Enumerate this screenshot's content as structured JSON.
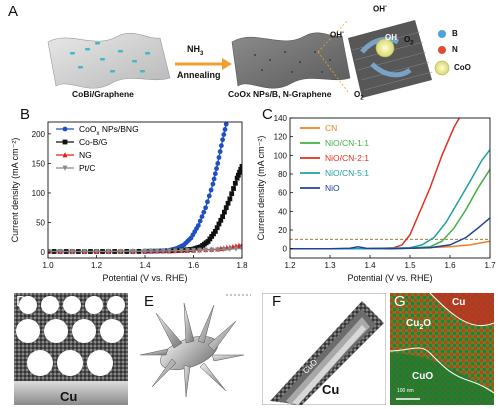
{
  "panelA": {
    "label": "A",
    "caption_left": "CoBi/Graphene",
    "arrow_top": "NH",
    "arrow_top_sub": "3",
    "arrow_bottom": "Annealing",
    "caption_mid": "CoOx NPs/B, N-Graphene",
    "oh1": "OH",
    "oh2": "OH",
    "oh3": "OH",
    "o2a": "O",
    "o2b": "O",
    "sub2": "2",
    "minus": "-",
    "legend": [
      {
        "name": "B",
        "color": "#4aa3df"
      },
      {
        "name": "N",
        "color": "#e24a33"
      },
      {
        "name": "CoO",
        "color": "#f0ef9a"
      }
    ]
  },
  "panelB": {
    "label": "B",
    "xlabel": "Potential (V vs. RHE)",
    "ylabel": "Current density (mA cm⁻²)",
    "xticks": [
      "1.0",
      "1.2",
      "1.4",
      "1.6",
      "1.8"
    ],
    "yticks": [
      "0",
      "50",
      "100",
      "150",
      "200"
    ],
    "legend": [
      "CoO",
      "x",
      "NPs/BNG",
      "Co-B/G",
      "NG",
      "Pt/C"
    ]
  },
  "panelC": {
    "label": "C",
    "xlabel": "Potential (V vs. RHE)",
    "ylabel": "Current density (mA cm⁻²)",
    "xticks": [
      "1.2",
      "1.3",
      "1.4",
      "1.5",
      "1.6",
      "1.7"
    ],
    "yticks": [
      "0",
      "20",
      "40",
      "60",
      "80",
      "100",
      "120",
      "140"
    ],
    "legend": [
      "CN",
      "NiO/CN-1:1",
      "NiO/CN-2:1",
      "NiO/CN-5:1",
      "NiO"
    ]
  },
  "panelD": {
    "label": "D",
    "text": "Cu"
  },
  "panelE": {
    "label": "E"
  },
  "panelF": {
    "label": "F",
    "layers": [
      "CuO NPs",
      "Cu",
      "O",
      "Cu",
      "O"
    ],
    "core": "Cu"
  },
  "panelG": {
    "label": "G",
    "cu": "Cu",
    "cu2o": "Cu",
    "cu2o_sub": "2",
    "o": "O",
    "cuo": "CuO",
    "scale": "100 nm"
  },
  "chart_data": [
    {
      "type": "line",
      "xlabel": "Potential (V vs. RHE)",
      "ylabel": "Current density (mA cm-2)",
      "xlim": [
        1.0,
        1.8
      ],
      "ylim": [
        -10,
        220
      ],
      "legend_position": "top-left",
      "series": [
        {
          "name": "CoOx NPs/BNG",
          "color": "#2050c0",
          "marker": "circle",
          "x": [
            1.0,
            1.1,
            1.2,
            1.3,
            1.4,
            1.45,
            1.5,
            1.53,
            1.56,
            1.59,
            1.62,
            1.65,
            1.68,
            1.7,
            1.72,
            1.74
          ],
          "y": [
            1,
            1,
            1,
            1,
            1.5,
            2,
            3,
            6,
            12,
            24,
            45,
            75,
            115,
            150,
            190,
            225
          ]
        },
        {
          "name": "Co-B/G",
          "color": "#111111",
          "marker": "square",
          "x": [
            1.0,
            1.1,
            1.2,
            1.3,
            1.4,
            1.5,
            1.55,
            1.6,
            1.63,
            1.66,
            1.69,
            1.72,
            1.75,
            1.78,
            1.8
          ],
          "y": [
            1,
            1,
            1,
            1,
            1.2,
            2,
            3,
            5,
            9,
            18,
            35,
            60,
            90,
            125,
            145
          ]
        },
        {
          "name": "NG",
          "color": "#e02020",
          "marker": "triangle-up",
          "x": [
            1.0,
            1.2,
            1.4,
            1.5,
            1.6,
            1.7,
            1.75,
            1.8
          ],
          "y": [
            1,
            1,
            1.5,
            2,
            3,
            5,
            8,
            12
          ]
        },
        {
          "name": "Pt/C",
          "color": "#888888",
          "marker": "triangle-down",
          "x": [
            1.0,
            1.2,
            1.4,
            1.5,
            1.6,
            1.7,
            1.8
          ],
          "y": [
            1,
            1,
            1.5,
            2,
            3,
            4,
            6
          ]
        }
      ]
    },
    {
      "type": "line",
      "xlabel": "Potential (V vs. RHE)",
      "ylabel": "Current density (mA cm-2)",
      "xlim": [
        1.2,
        1.7
      ],
      "ylim": [
        -10,
        140
      ],
      "legend_position": "top-left",
      "reference_line": 10,
      "series": [
        {
          "name": "CN",
          "color": "#f08020",
          "x": [
            1.2,
            1.4,
            1.5,
            1.6,
            1.65,
            1.7
          ],
          "y": [
            0,
            0,
            0.5,
            2,
            4,
            8
          ]
        },
        {
          "name": "NiO/CN-1:1",
          "color": "#40b040",
          "x": [
            1.2,
            1.4,
            1.5,
            1.55,
            1.58,
            1.61,
            1.64,
            1.67,
            1.7
          ],
          "y": [
            0,
            0,
            0.5,
            2,
            8,
            22,
            42,
            65,
            85
          ]
        },
        {
          "name": "NiO/CN-2:1",
          "color": "#e03020",
          "x": [
            1.2,
            1.4,
            1.46,
            1.48,
            1.5,
            1.52,
            1.55,
            1.58,
            1.61,
            1.63
          ],
          "y": [
            0,
            0,
            1,
            4,
            15,
            35,
            65,
            100,
            130,
            145
          ]
        },
        {
          "name": "NiO/CN-5:1",
          "color": "#20a0a0",
          "x": [
            1.2,
            1.4,
            1.5,
            1.53,
            1.56,
            1.59,
            1.62,
            1.65,
            1.68,
            1.7
          ],
          "y": [
            0,
            0,
            1,
            4,
            12,
            28,
            50,
            72,
            95,
            106
          ]
        },
        {
          "name": "NiO",
          "color": "#2040a0",
          "x": [
            1.2,
            1.3,
            1.35,
            1.37,
            1.39,
            1.45,
            1.55,
            1.6,
            1.64,
            1.67,
            1.7
          ],
          "y": [
            0,
            0,
            0.5,
            2,
            0.5,
            0,
            1,
            4,
            12,
            22,
            33
          ]
        }
      ]
    }
  ]
}
